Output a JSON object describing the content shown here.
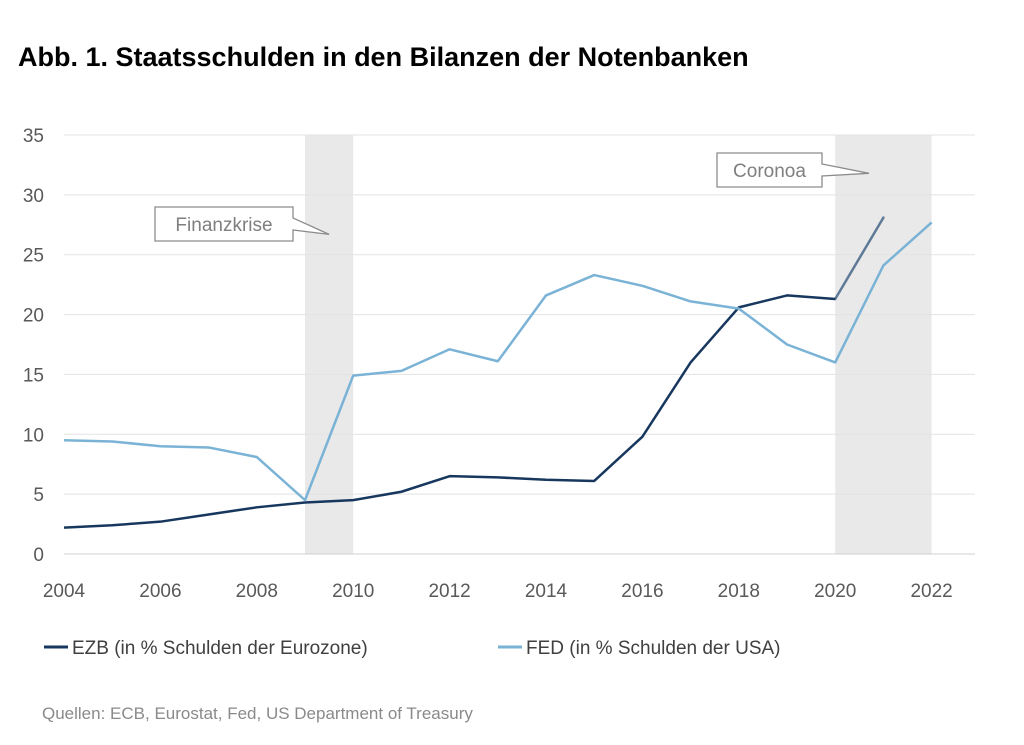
{
  "title": "Abb. 1. Staatsschulden in den Bilanzen der Notenbanken",
  "source": "Quellen: ECB, Eurostat, Fed, US Department of Treasury",
  "chart_data": {
    "type": "line",
    "x": [
      2004,
      2005,
      2006,
      2007,
      2008,
      2009,
      2010,
      2011,
      2012,
      2013,
      2014,
      2015,
      2016,
      2017,
      2018,
      2019,
      2020,
      2021,
      2022
    ],
    "xlim": [
      2004,
      2022.9
    ],
    "ylim": [
      0,
      35
    ],
    "x_ticks": [
      "2004",
      "2006",
      "2008",
      "2010",
      "2012",
      "2014",
      "2016",
      "2018",
      "2020",
      "2022"
    ],
    "y_ticks": [
      "0",
      "5",
      "10",
      "15",
      "20",
      "25",
      "30",
      "35"
    ],
    "grid": "horizontal",
    "legend_position": "bottom",
    "series": [
      {
        "name": "EZB  (in % Schulden der Eurozone)",
        "color": "#17375e",
        "last_segment_color": "#5f7a97",
        "values": [
          2.2,
          2.4,
          2.7,
          3.3,
          3.9,
          4.3,
          4.5,
          5.2,
          6.5,
          6.4,
          6.2,
          6.1,
          9.8,
          16.0,
          20.6,
          21.6,
          21.3,
          28.1,
          null
        ]
      },
      {
        "name": "FED (in % Schulden der USA)",
        "color": "#7ab3d6",
        "values": [
          9.5,
          9.4,
          9.0,
          8.9,
          8.1,
          4.5,
          14.9,
          15.3,
          17.1,
          16.1,
          21.6,
          23.3,
          22.4,
          21.1,
          20.5,
          17.5,
          16.0,
          24.1,
          27.7
        ]
      }
    ],
    "shaded_periods": [
      {
        "from": 2009,
        "to": 2010,
        "color": "#e9e9e9"
      },
      {
        "from": 2020,
        "to": 2022,
        "color": "#e9e9e9"
      }
    ],
    "annotations": [
      {
        "text": "Finanzkrise",
        "pointer_x": 2009.5,
        "pointer_y": 26.7
      },
      {
        "text": "Coronoa",
        "pointer_x": 2020.7,
        "pointer_y": 31.8
      }
    ]
  }
}
